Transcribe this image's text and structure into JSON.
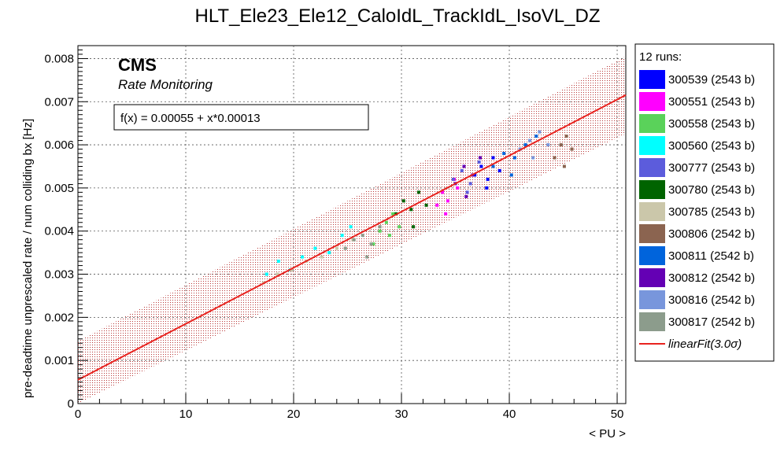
{
  "chart_data": {
    "type": "scatter",
    "title": "HLT_Ele23_Ele12_CaloIdL_TrackIdL_IsoVL_DZ",
    "xlabel": "< PU >",
    "ylabel": "pre-deadtime unprescaled rate / num colliding bx [Hz]",
    "xlim": [
      0,
      50.8
    ],
    "ylim": [
      0,
      0.0083
    ],
    "xticks": [
      "0",
      "10",
      "20",
      "30",
      "40",
      "50"
    ],
    "yticks": [
      "0",
      "0.001",
      "0.002",
      "0.003",
      "0.004",
      "0.005",
      "0.006",
      "0.007",
      "0.008"
    ],
    "grid": true,
    "legend_title": "12 runs:",
    "legend_position": "right",
    "cms_label": "CMS",
    "cms_sublabel": "Rate Monitoring",
    "fit": {
      "label": "f(x) = 0.00055 + x*0.00013",
      "intercept": 0.00055,
      "slope": 0.00013,
      "band_half_width": 0.0009,
      "legend_label_prefix": "linearFit(3.0",
      "legend_label_sigma": "σ",
      "legend_label_suffix": ")",
      "color": "#e8231f"
    },
    "series": [
      {
        "name": "300539 (2543 b)",
        "color": "#0000ff",
        "x": [
          36.8,
          37.4,
          38.0,
          38.5,
          39.1,
          37.9
        ],
        "y": [
          0.0053,
          0.0055,
          0.0052,
          0.0057,
          0.0054,
          0.005
        ]
      },
      {
        "name": "300551 (2543 b)",
        "color": "#ff00ff",
        "x": [
          33.3,
          33.8,
          34.3,
          34.9,
          35.2,
          34.1
        ],
        "y": [
          0.0046,
          0.0049,
          0.0047,
          0.0052,
          0.005,
          0.0044
        ]
      },
      {
        "name": "300558 (2543 b)",
        "color": "#5ad25a",
        "x": [
          27.4,
          28.0,
          28.6,
          29.2,
          29.8,
          28.9
        ],
        "y": [
          0.0037,
          0.004,
          0.0042,
          0.0044,
          0.0041,
          0.0039
        ]
      },
      {
        "name": "300560 (2543 b)",
        "color": "#00ffff",
        "x": [
          17.5,
          18.6,
          19.7,
          20.8,
          22.0,
          23.3,
          24.5,
          25.3
        ],
        "y": [
          0.003,
          0.0033,
          0.0031,
          0.0034,
          0.0036,
          0.0035,
          0.0039,
          0.0041
        ]
      },
      {
        "name": "300777 (2543 b)",
        "color": "#5c5cdc",
        "x": [
          34.8,
          35.6,
          36.4,
          37.2,
          36.1
        ],
        "y": [
          0.0052,
          0.0054,
          0.0051,
          0.0056,
          0.0049
        ]
      },
      {
        "name": "300780 (2543 b)",
        "color": "#006400",
        "x": [
          29.5,
          30.2,
          30.9,
          31.6,
          32.3,
          31.1
        ],
        "y": [
          0.0044,
          0.0047,
          0.0045,
          0.0049,
          0.0046,
          0.0041
        ]
      },
      {
        "name": "300785 (2543 b)",
        "color": "#cbc7aa",
        "x": [
          17.2,
          18.5,
          19.8,
          21.2,
          22.6,
          24.0,
          25.5
        ],
        "y": [
          0.0028,
          0.003,
          0.0031,
          0.0033,
          0.0034,
          0.0036,
          0.0038
        ]
      },
      {
        "name": "300806 (2542 b)",
        "color": "#8b6450",
        "x": [
          44.2,
          44.8,
          45.3,
          45.8,
          45.1
        ],
        "y": [
          0.0057,
          0.006,
          0.0062,
          0.0059,
          0.0055
        ]
      },
      {
        "name": "300811 (2542 b)",
        "color": "#0064dc",
        "x": [
          38.5,
          39.5,
          40.5,
          41.5,
          42.5,
          40.2
        ],
        "y": [
          0.0055,
          0.0058,
          0.0057,
          0.006,
          0.0062,
          0.0053
        ]
      },
      {
        "name": "300812 (2542 b)",
        "color": "#6400b4",
        "x": [
          35.0,
          35.8,
          36.6,
          37.3,
          36.0
        ],
        "y": [
          0.0051,
          0.0055,
          0.0053,
          0.0057,
          0.0048
        ]
      },
      {
        "name": "300816 (2542 b)",
        "color": "#7896dc",
        "x": [
          41.0,
          41.9,
          42.8,
          43.6,
          42.2
        ],
        "y": [
          0.0059,
          0.0061,
          0.0063,
          0.006,
          0.0057
        ]
      },
      {
        "name": "300817 (2542 b)",
        "color": "#8c9c8c",
        "x": [
          24.8,
          25.6,
          26.4,
          27.2,
          28.0,
          26.8
        ],
        "y": [
          0.0036,
          0.0038,
          0.0039,
          0.0037,
          0.0041,
          0.0034
        ]
      }
    ]
  }
}
